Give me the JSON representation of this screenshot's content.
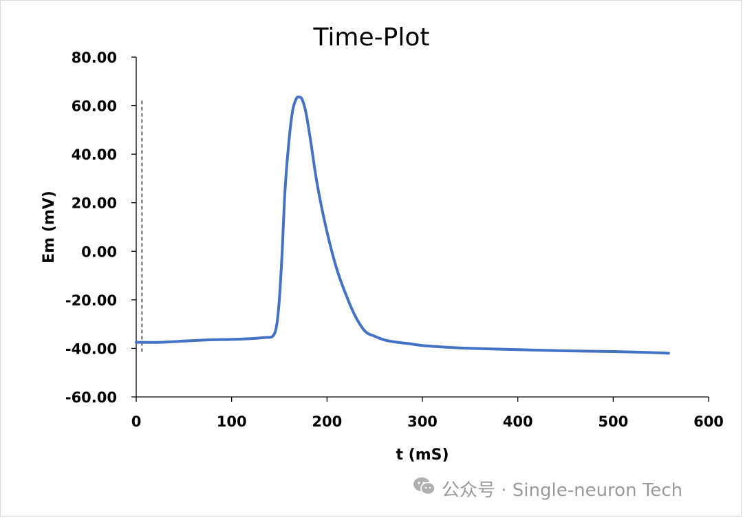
{
  "chart_data": {
    "type": "line",
    "title": "Time-Plot",
    "xlabel": "t (mS)",
    "ylabel": "Em (mV)",
    "xlim": [
      0,
      600
    ],
    "ylim": [
      -60,
      80
    ],
    "x_ticks": [
      "0",
      "100",
      "200",
      "300",
      "400",
      "500",
      "600"
    ],
    "y_ticks": [
      "80.00",
      "60.00",
      "40.00",
      "20.00",
      "0.00",
      "-20.00",
      "-40.00",
      "-60.00"
    ],
    "grid": false,
    "legend": "none",
    "line_color": "#4472c4",
    "series": [
      {
        "x": [
          0,
          25,
          50,
          75,
          100,
          120,
          135,
          143,
          147,
          150,
          153,
          156,
          160,
          164,
          168,
          171,
          174,
          178,
          183,
          190,
          200,
          210,
          220,
          230,
          240,
          250,
          260,
          270,
          285,
          300,
          325,
          350,
          400,
          450,
          500,
          530,
          558
        ],
        "y": [
          -37.5,
          -37.5,
          -37.0,
          -36.5,
          -36.3,
          -36.0,
          -35.5,
          -35.0,
          -31.0,
          -20.0,
          0.0,
          25.0,
          45.0,
          58.0,
          63.0,
          63.5,
          62.5,
          57.0,
          45.0,
          27.0,
          8.0,
          -7.0,
          -18.0,
          -27.0,
          -33.0,
          -35.0,
          -36.5,
          -37.3,
          -38.0,
          -38.8,
          -39.5,
          -40.0,
          -40.5,
          -41.0,
          -41.3,
          -41.6,
          -42.0
        ]
      }
    ]
  },
  "annotation": {
    "dashed_marker_x": 6,
    "dashed_marker_ymin": -42,
    "dashed_marker_ymax": 62
  },
  "watermark": {
    "text": "公众号 · Single-neuron Tech",
    "icon": "wechat-icon"
  }
}
